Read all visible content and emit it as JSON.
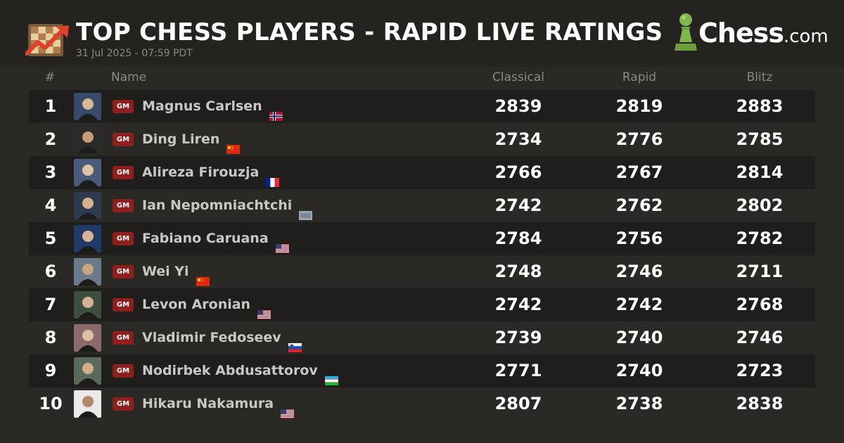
{
  "header": {
    "title": "TOP CHESS PLAYERS - RAPID LIVE RATINGS",
    "date": "31 Jul 2025 - 07:59 PDT",
    "icon": "chess-board-trend-icon",
    "logo": {
      "brand": "Chess",
      "tld": ".com"
    }
  },
  "columns": {
    "rank": "#",
    "name": "Name",
    "classical": "Classical",
    "rapid": "Rapid",
    "blitz": "Blitz"
  },
  "colors": {
    "background": "#2b2926",
    "row_dark": "#201e1c",
    "title_badge": "#8f1f1d",
    "logo_green": "#81b64c"
  },
  "players": [
    {
      "rank": "1",
      "title": "GM",
      "name": "Magnus Carlsen",
      "flag": "norway-flag",
      "classical": "2839",
      "rapid": "2819",
      "blitz": "2883"
    },
    {
      "rank": "2",
      "title": "GM",
      "name": "Ding Liren",
      "flag": "china-flag",
      "classical": "2734",
      "rapid": "2776",
      "blitz": "2785"
    },
    {
      "rank": "3",
      "title": "GM",
      "name": "Alireza Firouzja",
      "flag": "france-flag",
      "classical": "2766",
      "rapid": "2767",
      "blitz": "2814"
    },
    {
      "rank": "4",
      "title": "GM",
      "name": "Ian Nepomniachtchi",
      "flag": "fide-flag",
      "classical": "2742",
      "rapid": "2762",
      "blitz": "2802"
    },
    {
      "rank": "5",
      "title": "GM",
      "name": "Fabiano Caruana",
      "flag": "usa-flag",
      "classical": "2784",
      "rapid": "2756",
      "blitz": "2782"
    },
    {
      "rank": "6",
      "title": "GM",
      "name": "Wei Yi",
      "flag": "china-flag",
      "classical": "2748",
      "rapid": "2746",
      "blitz": "2711"
    },
    {
      "rank": "7",
      "title": "GM",
      "name": "Levon Aronian",
      "flag": "usa-flag",
      "classical": "2742",
      "rapid": "2742",
      "blitz": "2768"
    },
    {
      "rank": "8",
      "title": "GM",
      "name": "Vladimir Fedoseev",
      "flag": "slovenia-flag",
      "classical": "2739",
      "rapid": "2740",
      "blitz": "2746"
    },
    {
      "rank": "9",
      "title": "GM",
      "name": "Nodirbek Abdusattorov",
      "flag": "uzbekistan-flag",
      "classical": "2771",
      "rapid": "2740",
      "blitz": "2723"
    },
    {
      "rank": "10",
      "title": "GM",
      "name": "Hikaru Nakamura",
      "flag": "usa-flag",
      "classical": "2807",
      "rapid": "2738",
      "blitz": "2838"
    }
  ]
}
